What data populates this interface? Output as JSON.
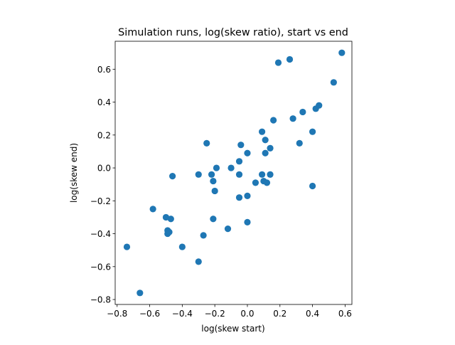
{
  "chart_data": {
    "type": "scatter",
    "title": "Simulation runs, log(skew ratio), start vs end",
    "xlabel": "log(skew start)",
    "ylabel": "log(skew end)",
    "xlim": [
      -0.812,
      0.642
    ],
    "ylim": [
      -0.83,
      0.77
    ],
    "xticks": [
      -0.8,
      -0.6,
      -0.4,
      -0.2,
      0.0,
      0.2,
      0.4,
      0.6
    ],
    "xtick_labels": [
      "−0.8",
      "−0.6",
      "−0.4",
      "−0.2",
      "0.0",
      "0.2",
      "0.4",
      "0.6"
    ],
    "yticks": [
      -0.8,
      -0.6,
      -0.4,
      -0.2,
      0.0,
      0.2,
      0.4,
      0.6
    ],
    "ytick_labels": [
      "−0.8",
      "−0.6",
      "−0.4",
      "−0.2",
      "0.0",
      "0.2",
      "0.4",
      "0.6"
    ],
    "grid": false,
    "marker_color": "#1f77b4",
    "points": [
      {
        "x": -0.74,
        "y": -0.48
      },
      {
        "x": -0.66,
        "y": -0.76
      },
      {
        "x": -0.58,
        "y": -0.25
      },
      {
        "x": -0.5,
        "y": -0.3
      },
      {
        "x": -0.49,
        "y": -0.38
      },
      {
        "x": -0.49,
        "y": -0.4
      },
      {
        "x": -0.48,
        "y": -0.39
      },
      {
        "x": -0.47,
        "y": -0.31
      },
      {
        "x": -0.46,
        "y": -0.05
      },
      {
        "x": -0.4,
        "y": -0.48
      },
      {
        "x": -0.3,
        "y": -0.04
      },
      {
        "x": -0.3,
        "y": -0.57
      },
      {
        "x": -0.27,
        "y": -0.41
      },
      {
        "x": -0.25,
        "y": 0.15
      },
      {
        "x": -0.22,
        "y": -0.04
      },
      {
        "x": -0.21,
        "y": -0.08
      },
      {
        "x": -0.21,
        "y": -0.31
      },
      {
        "x": -0.2,
        "y": -0.14
      },
      {
        "x": -0.19,
        "y": 0.0
      },
      {
        "x": -0.12,
        "y": -0.37
      },
      {
        "x": -0.1,
        "y": 0.0
      },
      {
        "x": -0.05,
        "y": 0.04
      },
      {
        "x": -0.05,
        "y": -0.04
      },
      {
        "x": -0.05,
        "y": -0.18
      },
      {
        "x": -0.04,
        "y": 0.14
      },
      {
        "x": 0.0,
        "y": 0.09
      },
      {
        "x": 0.0,
        "y": -0.17
      },
      {
        "x": 0.0,
        "y": -0.33
      },
      {
        "x": 0.05,
        "y": -0.09
      },
      {
        "x": 0.09,
        "y": 0.22
      },
      {
        "x": 0.09,
        "y": -0.04
      },
      {
        "x": 0.1,
        "y": -0.08
      },
      {
        "x": 0.11,
        "y": 0.17
      },
      {
        "x": 0.11,
        "y": 0.09
      },
      {
        "x": 0.12,
        "y": -0.09
      },
      {
        "x": 0.14,
        "y": 0.12
      },
      {
        "x": 0.14,
        "y": -0.04
      },
      {
        "x": 0.16,
        "y": 0.29
      },
      {
        "x": 0.19,
        "y": 0.64
      },
      {
        "x": 0.26,
        "y": 0.66
      },
      {
        "x": 0.28,
        "y": 0.3
      },
      {
        "x": 0.32,
        "y": 0.15
      },
      {
        "x": 0.34,
        "y": 0.34
      },
      {
        "x": 0.4,
        "y": 0.22
      },
      {
        "x": 0.4,
        "y": -0.11
      },
      {
        "x": 0.42,
        "y": 0.36
      },
      {
        "x": 0.44,
        "y": 0.38
      },
      {
        "x": 0.53,
        "y": 0.52
      },
      {
        "x": 0.58,
        "y": 0.7
      }
    ]
  }
}
